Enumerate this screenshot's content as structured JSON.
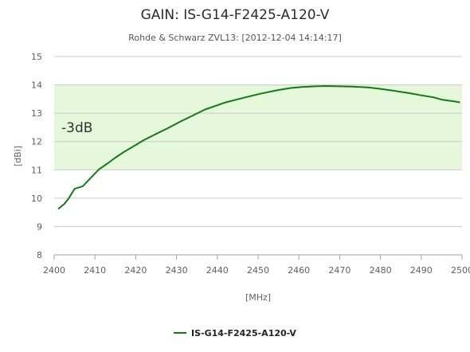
{
  "chart_data": {
    "type": "line",
    "title": "GAIN: IS-G14-F2425-A120-V",
    "subtitle": "Rohde & Schwarz ZVL13: [2012-12-04 14:14:17]",
    "xlabel": "[MHz]",
    "ylabel": "[dBi]",
    "xlim": [
      2400,
      2500
    ],
    "ylim": [
      8,
      15
    ],
    "x_ticks": [
      2400,
      2410,
      2420,
      2430,
      2440,
      2450,
      2460,
      2470,
      2480,
      2490,
      2500
    ],
    "y_ticks": [
      8,
      9,
      10,
      11,
      12,
      13,
      14,
      15
    ],
    "grid": true,
    "band": {
      "label": "-3dB",
      "from": 11,
      "to": 14,
      "color": "#e6f8dc"
    },
    "legend_position": "bottom-center",
    "series": [
      {
        "name": "IS-G14-F2425-A120-V",
        "color": "#117a11",
        "x": [
          2401,
          2402.5,
          2403.5,
          2405,
          2407,
          2409,
          2411,
          2413,
          2415,
          2417,
          2420,
          2422,
          2425,
          2428,
          2431,
          2434,
          2437,
          2440,
          2442,
          2445,
          2448,
          2451,
          2455,
          2458,
          2461,
          2464,
          2467,
          2470,
          2473,
          2477,
          2480,
          2483,
          2487,
          2490,
          2493,
          2495,
          2498,
          2499.5
        ],
        "y": [
          9.62,
          9.8,
          9.98,
          10.33,
          10.42,
          10.72,
          11.02,
          11.22,
          11.43,
          11.62,
          11.88,
          12.05,
          12.27,
          12.48,
          12.71,
          12.92,
          13.13,
          13.28,
          13.38,
          13.49,
          13.6,
          13.7,
          13.82,
          13.89,
          13.93,
          13.95,
          13.96,
          13.95,
          13.94,
          13.91,
          13.86,
          13.8,
          13.71,
          13.63,
          13.56,
          13.48,
          13.42,
          13.38
        ]
      }
    ]
  }
}
